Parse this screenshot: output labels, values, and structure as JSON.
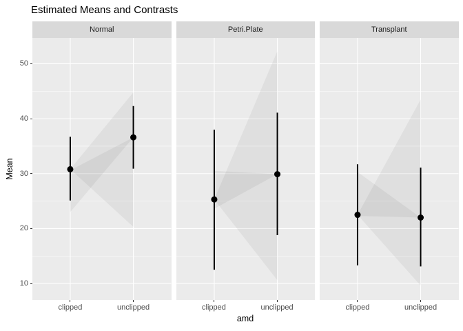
{
  "title": "Estimated Means and Contrasts",
  "chart_data": {
    "type": "pointrange",
    "title": "Estimated Means and Contrasts",
    "xlabel": "amd",
    "ylabel": "Mean",
    "categories": [
      "clipped",
      "unclipped"
    ],
    "y_ticks": [
      10,
      20,
      30,
      40,
      50
    ],
    "y_minor_ticks": [
      15,
      25,
      35,
      45
    ],
    "ylim": [
      7.0,
      54.7
    ],
    "grid": "on",
    "legend": "none",
    "facets": [
      {
        "label": "Normal",
        "points": [
          {
            "x": "clipped",
            "mean": 30.8,
            "ci": [
              25.1,
              36.7
            ]
          },
          {
            "x": "unclipped",
            "mean": 36.6,
            "ci": [
              30.9,
              42.3
            ]
          }
        ],
        "contrast_wedges": [
          {
            "apex": "clipped",
            "base": "unclipped",
            "base_span": [
              20.3,
              44.8
            ]
          },
          {
            "apex": "unclipped",
            "base": "clipped",
            "base_span": [
              23.0,
              30.6
            ]
          }
        ]
      },
      {
        "label": "Petri.Plate",
        "points": [
          {
            "x": "clipped",
            "mean": 25.3,
            "ci": [
              12.5,
              38.0
            ]
          },
          {
            "x": "unclipped",
            "mean": 29.9,
            "ci": [
              18.8,
              41.1
            ]
          }
        ],
        "contrast_wedges": [
          {
            "apex": "clipped",
            "base": "unclipped",
            "base_span": [
              10.6,
              52.3
            ]
          },
          {
            "apex": "unclipped",
            "base": "clipped",
            "base_span": [
              23.6,
              30.5
            ]
          }
        ]
      },
      {
        "label": "Transplant",
        "points": [
          {
            "x": "clipped",
            "mean": 22.5,
            "ci": [
              13.3,
              31.7
            ]
          },
          {
            "x": "unclipped",
            "mean": 22.0,
            "ci": [
              13.1,
              31.1
            ]
          }
        ],
        "contrast_wedges": [
          {
            "apex": "clipped",
            "base": "unclipped",
            "base_span": [
              9.6,
              43.5
            ]
          },
          {
            "apex": "unclipped",
            "base": "clipped",
            "base_span": [
              22.3,
              30.3
            ]
          }
        ]
      }
    ],
    "colors": {
      "panel_bg": "#ebebeb",
      "strip_bg": "#d9d9d9",
      "gridline": "#ffffff",
      "point": "#000000",
      "errorbar": "#000000",
      "wedge_fill": "rgba(0,0,0,0.05)",
      "tick_text": "#4d4d4d",
      "tick_mark": "#333333"
    }
  }
}
